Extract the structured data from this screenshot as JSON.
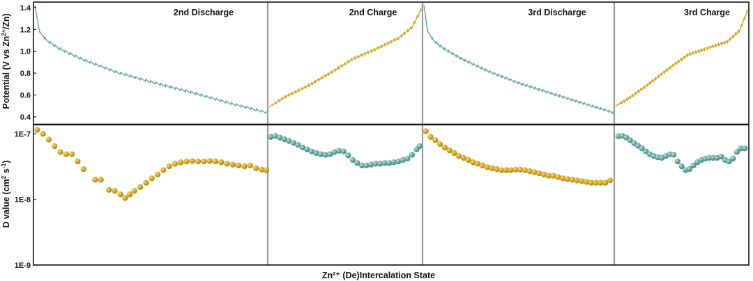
{
  "chart_data": {
    "type": "line",
    "xlabel": "Zn²⁺ (De)Intercalation State",
    "panel_titles": [
      "2nd Discharge",
      "2nd Charge",
      "3rd Discharge",
      "3rd Charge"
    ],
    "colors": {
      "discharge": "#5fa59e",
      "charge": "#d1a51f",
      "divider": "#9a9a9a",
      "frame": "#111111"
    },
    "top": {
      "ylabel_parts": [
        "Potential (V vs Zn",
        "2+",
        "/Zn)"
      ],
      "ylim": [
        0.33,
        1.45
      ],
      "ticks": [
        0.4,
        0.6,
        0.8,
        1.0,
        1.2,
        1.4
      ],
      "tick_labels": [
        "0.4",
        "0.6",
        "0.8",
        "1.0",
        "1.2",
        "1.4"
      ],
      "series": [
        {
          "segment": 0,
          "color_key": "discharge",
          "anchors": [
            [
              0,
              1.42
            ],
            [
              0.02,
              1.18
            ],
            [
              0.05,
              1.1
            ],
            [
              0.1,
              1.03
            ],
            [
              0.2,
              0.93
            ],
            [
              0.35,
              0.81
            ],
            [
              0.5,
              0.72
            ],
            [
              0.7,
              0.61
            ],
            [
              0.85,
              0.52
            ],
            [
              1.0,
              0.44
            ]
          ]
        },
        {
          "segment": 1,
          "color_key": "charge",
          "anchors": [
            [
              0,
              0.49
            ],
            [
              0.1,
              0.58
            ],
            [
              0.25,
              0.68
            ],
            [
              0.4,
              0.8
            ],
            [
              0.55,
              0.93
            ],
            [
              0.7,
              1.02
            ],
            [
              0.85,
              1.12
            ],
            [
              0.94,
              1.22
            ],
            [
              1.0,
              1.38
            ]
          ]
        },
        {
          "segment": 2,
          "color_key": "discharge",
          "anchors": [
            [
              0,
              1.42
            ],
            [
              0.02,
              1.18
            ],
            [
              0.05,
              1.1
            ],
            [
              0.1,
              1.03
            ],
            [
              0.2,
              0.93
            ],
            [
              0.35,
              0.81
            ],
            [
              0.5,
              0.71
            ],
            [
              0.7,
              0.6
            ],
            [
              0.85,
              0.52
            ],
            [
              1.0,
              0.44
            ]
          ]
        },
        {
          "segment": 3,
          "color_key": "charge",
          "anchors": [
            [
              0,
              0.5
            ],
            [
              0.1,
              0.57
            ],
            [
              0.25,
              0.7
            ],
            [
              0.4,
              0.84
            ],
            [
              0.55,
              0.97
            ],
            [
              0.7,
              1.03
            ],
            [
              0.85,
              1.09
            ],
            [
              0.94,
              1.19
            ],
            [
              1.0,
              1.37
            ]
          ]
        }
      ]
    },
    "bottom": {
      "ylabel_parts": [
        "D value (cm",
        "2",
        " s",
        "-1",
        ")"
      ],
      "scale": "log",
      "ylim": [
        1e-09,
        1.2e-07
      ],
      "ticks": [
        1e-09,
        1e-08,
        1e-07
      ],
      "tick_labels": [
        "1E-9",
        "1E-8",
        "1E-7"
      ],
      "series": [
        {
          "segment": 0,
          "color_key": "charge",
          "points": [
            [
              0.01,
              1.15e-07
            ],
            [
              0.035,
              1e-07
            ],
            [
              0.06,
              8.2e-08
            ],
            [
              0.085,
              6.5e-08
            ],
            [
              0.11,
              5.3e-08
            ],
            [
              0.135,
              4.9e-08
            ],
            [
              0.16,
              4.9e-08
            ],
            [
              0.185,
              3.8e-08
            ],
            [
              0.21,
              2.9e-08
            ],
            [
              0.26,
              2e-08
            ],
            [
              0.285,
              2e-08
            ],
            [
              0.32,
              1.4e-08
            ],
            [
              0.345,
              1.35e-08
            ],
            [
              0.37,
              1.2e-08
            ],
            [
              0.39,
              1.05e-08
            ],
            [
              0.41,
              1.2e-08
            ],
            [
              0.43,
              1.35e-08
            ],
            [
              0.455,
              1.55e-08
            ],
            [
              0.48,
              1.8e-08
            ],
            [
              0.505,
              2.1e-08
            ],
            [
              0.53,
              2.4e-08
            ],
            [
              0.555,
              2.8e-08
            ],
            [
              0.58,
              3.2e-08
            ],
            [
              0.605,
              3.5e-08
            ],
            [
              0.63,
              3.7e-08
            ],
            [
              0.655,
              3.8e-08
            ],
            [
              0.68,
              3.85e-08
            ],
            [
              0.705,
              3.8e-08
            ],
            [
              0.73,
              3.8e-08
            ],
            [
              0.755,
              3.85e-08
            ],
            [
              0.78,
              3.8e-08
            ],
            [
              0.805,
              3.7e-08
            ],
            [
              0.83,
              3.5e-08
            ],
            [
              0.855,
              3.4e-08
            ],
            [
              0.88,
              3.3e-08
            ],
            [
              0.905,
              3.2e-08
            ],
            [
              0.93,
              3.3e-08
            ],
            [
              0.955,
              3e-08
            ],
            [
              0.98,
              2.85e-08
            ],
            [
              1.0,
              2.8e-08
            ]
          ]
        },
        {
          "segment": 1,
          "color_key": "discharge",
          "points": [
            [
              0.01,
              9e-08
            ],
            [
              0.04,
              9.3e-08
            ],
            [
              0.07,
              8.8e-08
            ],
            [
              0.1,
              8.3e-08
            ],
            [
              0.13,
              7.8e-08
            ],
            [
              0.16,
              7.3e-08
            ],
            [
              0.19,
              6.8e-08
            ],
            [
              0.22,
              6.2e-08
            ],
            [
              0.25,
              5.8e-08
            ],
            [
              0.28,
              5.4e-08
            ],
            [
              0.31,
              5.1e-08
            ],
            [
              0.34,
              4.9e-08
            ],
            [
              0.37,
              4.8e-08
            ],
            [
              0.4,
              4.9e-08
            ],
            [
              0.43,
              5.3e-08
            ],
            [
              0.46,
              5.5e-08
            ],
            [
              0.49,
              5.4e-08
            ],
            [
              0.52,
              4.7e-08
            ],
            [
              0.55,
              4e-08
            ],
            [
              0.58,
              3.6e-08
            ],
            [
              0.61,
              3.3e-08
            ],
            [
              0.64,
              3.3e-08
            ],
            [
              0.67,
              3.4e-08
            ],
            [
              0.7,
              3.5e-08
            ],
            [
              0.73,
              3.5e-08
            ],
            [
              0.76,
              3.6e-08
            ],
            [
              0.79,
              3.6e-08
            ],
            [
              0.82,
              3.7e-08
            ],
            [
              0.85,
              3.8e-08
            ],
            [
              0.88,
              4e-08
            ],
            [
              0.91,
              4.2e-08
            ],
            [
              0.94,
              4.8e-08
            ],
            [
              0.97,
              5.8e-08
            ],
            [
              0.99,
              6.5e-08
            ]
          ]
        },
        {
          "segment": 2,
          "color_key": "charge",
          "points": [
            [
              0.01,
              1.1e-07
            ],
            [
              0.035,
              9e-08
            ],
            [
              0.06,
              8e-08
            ],
            [
              0.085,
              7e-08
            ],
            [
              0.11,
              6.2e-08
            ],
            [
              0.135,
              5.6e-08
            ],
            [
              0.16,
              5.1e-08
            ],
            [
              0.185,
              4.6e-08
            ],
            [
              0.21,
              4.3e-08
            ],
            [
              0.235,
              4e-08
            ],
            [
              0.26,
              3.7e-08
            ],
            [
              0.285,
              3.5e-08
            ],
            [
              0.31,
              3.3e-08
            ],
            [
              0.335,
              3.1e-08
            ],
            [
              0.36,
              3e-08
            ],
            [
              0.385,
              2.9e-08
            ],
            [
              0.41,
              2.8e-08
            ],
            [
              0.435,
              2.8e-08
            ],
            [
              0.46,
              2.8e-08
            ],
            [
              0.485,
              2.85e-08
            ],
            [
              0.51,
              2.85e-08
            ],
            [
              0.535,
              2.8e-08
            ],
            [
              0.56,
              2.7e-08
            ],
            [
              0.585,
              2.6e-08
            ],
            [
              0.61,
              2.5e-08
            ],
            [
              0.635,
              2.4e-08
            ],
            [
              0.66,
              2.3e-08
            ],
            [
              0.685,
              2.3e-08
            ],
            [
              0.71,
              2.2e-08
            ],
            [
              0.735,
              2.1e-08
            ],
            [
              0.76,
              2.05e-08
            ],
            [
              0.785,
              2e-08
            ],
            [
              0.81,
              1.95e-08
            ],
            [
              0.835,
              1.9e-08
            ],
            [
              0.86,
              1.85e-08
            ],
            [
              0.885,
              1.8e-08
            ],
            [
              0.91,
              1.8e-08
            ],
            [
              0.935,
              1.8e-08
            ],
            [
              0.96,
              1.8e-08
            ],
            [
              0.985,
              1.95e-08
            ]
          ]
        },
        {
          "segment": 3,
          "color_key": "discharge",
          "points": [
            [
              0.02,
              9.2e-08
            ],
            [
              0.05,
              9.3e-08
            ],
            [
              0.08,
              8.8e-08
            ],
            [
              0.11,
              8e-08
            ],
            [
              0.14,
              7.2e-08
            ],
            [
              0.17,
              6.6e-08
            ],
            [
              0.2,
              6e-08
            ],
            [
              0.23,
              5.4e-08
            ],
            [
              0.26,
              4.9e-08
            ],
            [
              0.29,
              4.6e-08
            ],
            [
              0.32,
              4.4e-08
            ],
            [
              0.35,
              4.3e-08
            ],
            [
              0.38,
              4.6e-08
            ],
            [
              0.41,
              4.9e-08
            ],
            [
              0.44,
              4.8e-08
            ],
            [
              0.47,
              3.8e-08
            ],
            [
              0.5,
              3.2e-08
            ],
            [
              0.53,
              2.8e-08
            ],
            [
              0.56,
              2.9e-08
            ],
            [
              0.59,
              3.3e-08
            ],
            [
              0.62,
              3.7e-08
            ],
            [
              0.65,
              4e-08
            ],
            [
              0.68,
              4.2e-08
            ],
            [
              0.71,
              4.3e-08
            ],
            [
              0.74,
              4.3e-08
            ],
            [
              0.77,
              4.3e-08
            ],
            [
              0.8,
              4.5e-08
            ],
            [
              0.83,
              4e-08
            ],
            [
              0.86,
              3.8e-08
            ],
            [
              0.89,
              4.2e-08
            ],
            [
              0.92,
              5.3e-08
            ],
            [
              0.95,
              6e-08
            ],
            [
              0.98,
              6e-08
            ]
          ]
        }
      ]
    }
  }
}
